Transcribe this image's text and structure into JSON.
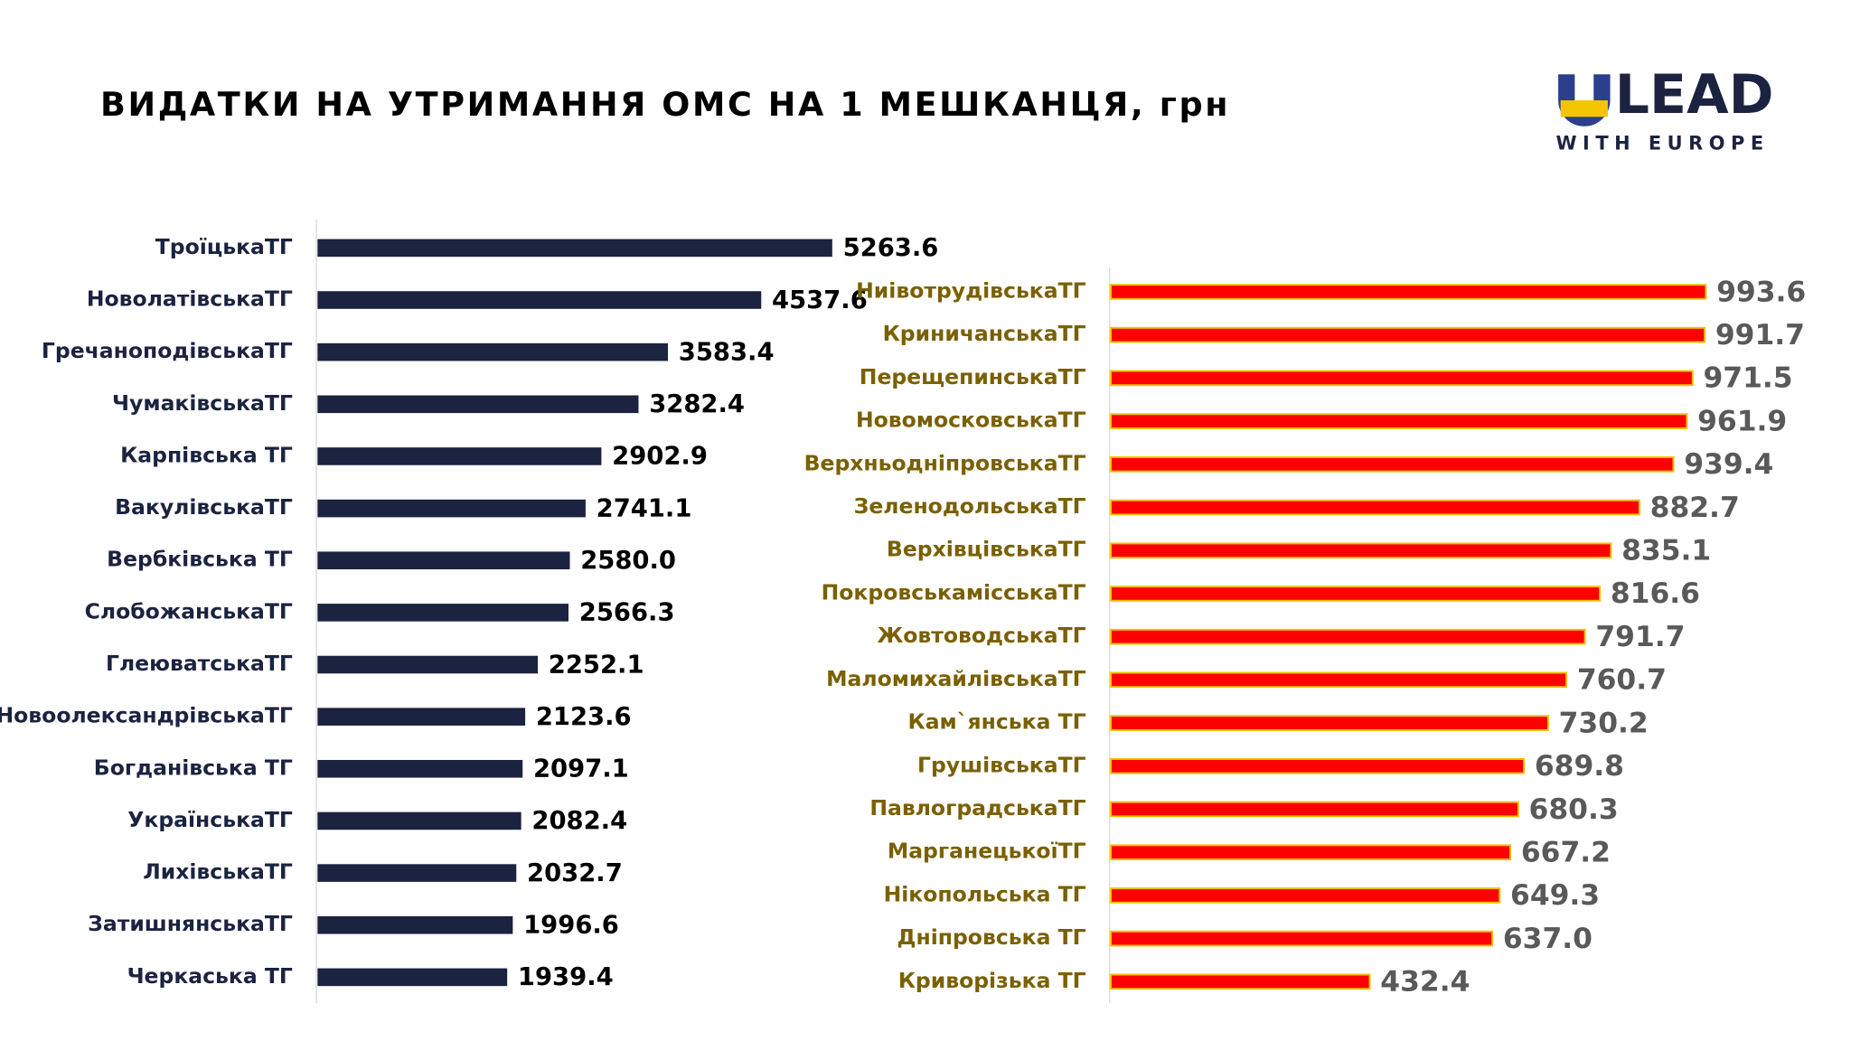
{
  "header": {
    "title": "ВИДАТКИ НА УТРИМАННЯ ОМС НА 1 МЕШКАНЦЯ, грн",
    "logo": "LEAD",
    "logo_subtitle": "WITH EUROPE"
  },
  "chart_data": [
    {
      "type": "hbar",
      "color": "#1b2340",
      "label_color": "#1b2340",
      "value_label_color": "#000000",
      "xlim": [
        0,
        6000
      ],
      "categories": [
        "ТроїцькаТГ",
        "НоволатівськаТГ",
        "ГречаноподівськаТГ",
        "ЧумаківськаТГ",
        "Карпівська ТГ",
        "ВакулівськаТГ",
        "Вербківська ТГ",
        "СлобожанськаТГ",
        "ГлеюватськаТГ",
        "НовоолександрівськаТГ",
        "Богданівська ТГ",
        "УкраїнськаТГ",
        "ЛихівськаТГ",
        "ЗатишнянськаТГ",
        "Черкаська ТГ"
      ],
      "values": [
        5263.6,
        4537.6,
        3583.4,
        3282.4,
        2902.9,
        2741.1,
        2580,
        2566.3,
        2252.1,
        2123.6,
        2097.1,
        2082.4,
        2032.7,
        1996.6,
        1939.4
      ],
      "value_labels": [
        "5263.6",
        "4537.6",
        "3583.4",
        "3282.4",
        "2902.9",
        "2741.1",
        "2580.0",
        "2566.3",
        "2252.1",
        "2123.6",
        "2097.1",
        "2082.4",
        "2032.7",
        "1996.6",
        "1939.4"
      ]
    },
    {
      "type": "hbar",
      "color": "#ff0000",
      "label_color": "#7a6000",
      "value_label_color": "#595959",
      "xlim": [
        0,
        1100
      ],
      "categories": [
        "НиівотрудівськаТГ",
        "КриничанськаТГ",
        "ПерещепинськаТГ",
        "НовомосковськаТГ",
        "ВерхньодніпровськаТГ",
        "ЗеленодольськаТГ",
        "ВерхівцівськаТГ",
        "ПокровськамісськаТГ",
        "ЖовтоводськаТГ",
        "МаломихайлівськаТГ",
        "Кам`янська ТГ",
        "ГрушівськаТГ",
        "ПавлоградськаТГ",
        "МарганецькоїТГ",
        "Нікопольська ТГ",
        "Дніпровська ТГ",
        "Криворізька ТГ"
      ],
      "values": [
        993.6,
        991.7,
        971.5,
        961.9,
        939.4,
        882.7,
        835.1,
        816.6,
        791.7,
        760.7,
        730.2,
        689.8,
        680.3,
        667.2,
        649.3,
        637,
        432.4
      ],
      "value_labels": [
        "993.6",
        "991.7",
        "971.5",
        "961.9",
        "939.4",
        "882.7",
        "835.1",
        "816.6",
        "791.7",
        "760.7",
        "730.2",
        "689.8",
        "680.3",
        "667.2",
        "649.3",
        "637.0",
        "432.4"
      ]
    }
  ]
}
